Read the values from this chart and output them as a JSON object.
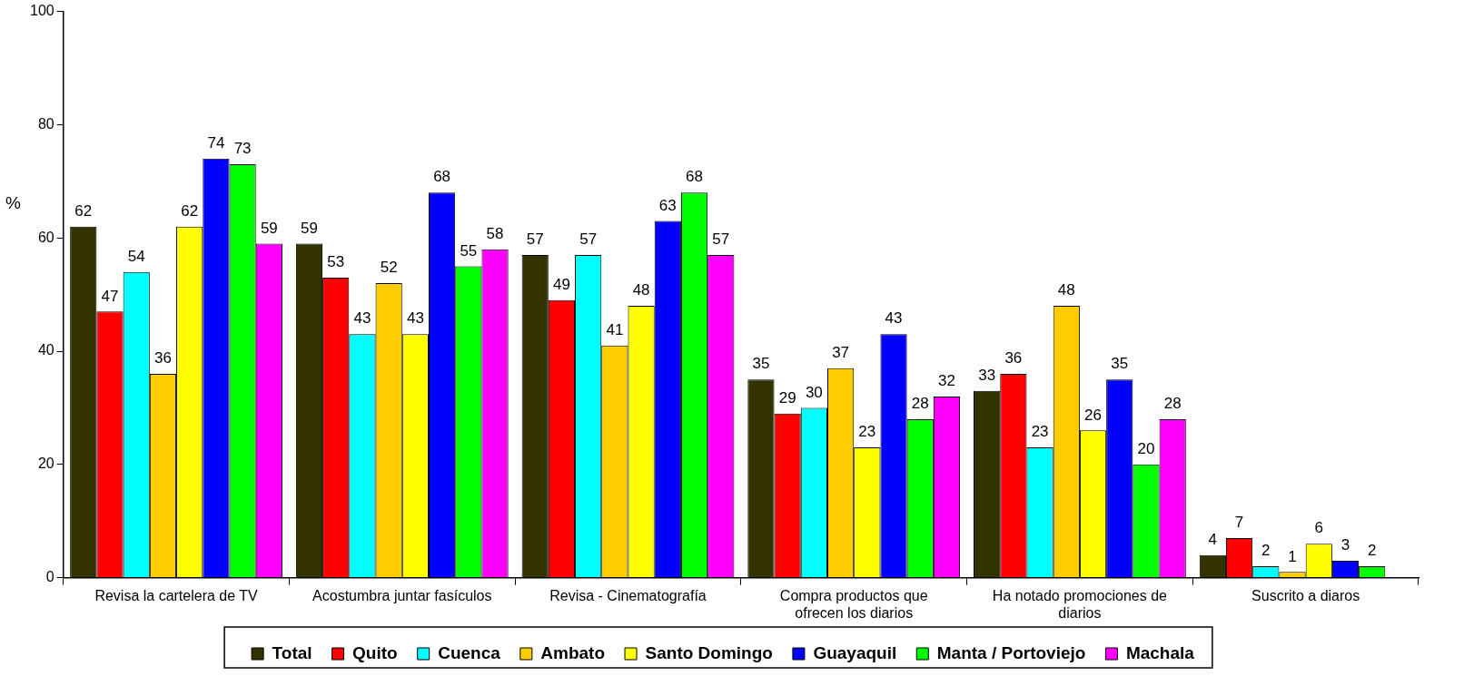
{
  "chart_data": {
    "type": "bar",
    "ylabel": "%",
    "categories": [
      "Revisa la cartelera de TV",
      "Acostumbra juntar fasículos",
      "Revisa - Cinematografía",
      "Compra productos que ofrecen los diarios",
      "Ha notado promociones de diarios",
      "Suscrito a diaros"
    ],
    "series": [
      {
        "name": "Total",
        "color": "#333300",
        "values": [
          62,
          59,
          57,
          35,
          33,
          4
        ]
      },
      {
        "name": "Quito",
        "color": "#ff0000",
        "values": [
          47,
          53,
          49,
          29,
          36,
          7
        ]
      },
      {
        "name": "Cuenca",
        "color": "#00ffff",
        "values": [
          54,
          43,
          57,
          30,
          23,
          2
        ]
      },
      {
        "name": "Ambato",
        "color": "#ffcc00",
        "values": [
          36,
          52,
          41,
          37,
          48,
          1
        ]
      },
      {
        "name": "Santo Domingo",
        "color": "#ffff00",
        "values": [
          62,
          43,
          48,
          23,
          26,
          6
        ]
      },
      {
        "name": "Guayaquil",
        "color": "#0000ff",
        "values": [
          74,
          68,
          63,
          43,
          35,
          3
        ]
      },
      {
        "name": "Manta / Portoviejo",
        "color": "#00ff00",
        "values": [
          73,
          55,
          68,
          28,
          20,
          2
        ]
      },
      {
        "name": "Machala",
        "color": "#ff00ff",
        "values": [
          59,
          58,
          57,
          32,
          28,
          null
        ]
      }
    ],
    "ylim": [
      0,
      100
    ],
    "yticks": [
      0,
      20,
      40,
      60,
      80,
      100
    ],
    "grid": false,
    "legend": "bottom",
    "data_labels": true
  }
}
